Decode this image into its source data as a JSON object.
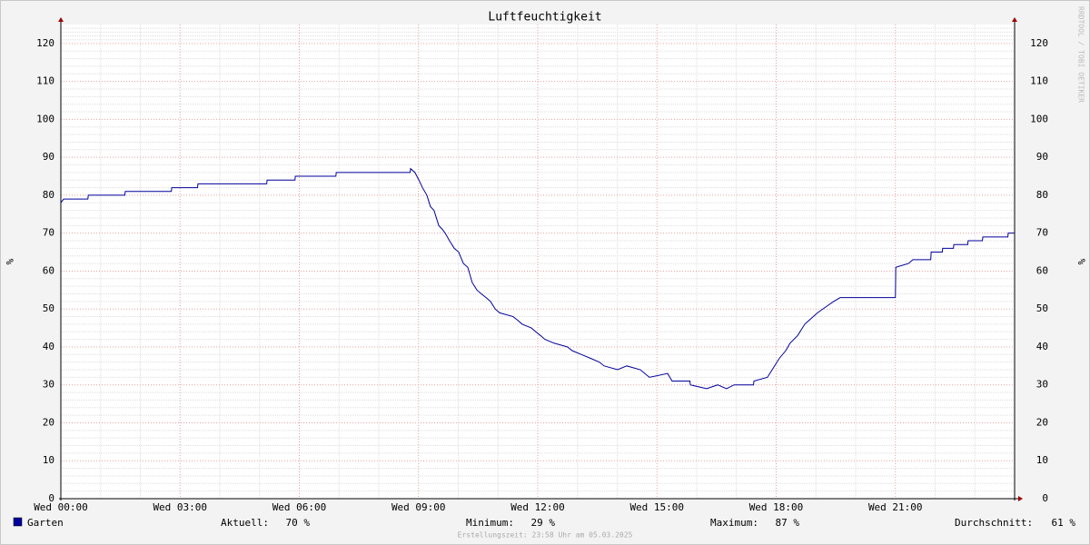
{
  "chart_data": {
    "type": "line",
    "title": "Luftfeuchtigkeit",
    "ylabel": "%",
    "watermark": "RRDTOOL / TOBI OETIKER",
    "footer": "Erstellungszeit: 23:58 Uhr am 05.03.2025",
    "xlim": [
      0,
      24
    ],
    "xticks": [
      {
        "value": 0,
        "label": "Wed 00:00"
      },
      {
        "value": 3,
        "label": "Wed 03:00"
      },
      {
        "value": 6,
        "label": "Wed 06:00"
      },
      {
        "value": 9,
        "label": "Wed 09:00"
      },
      {
        "value": 12,
        "label": "Wed 12:00"
      },
      {
        "value": 15,
        "label": "Wed 15:00"
      },
      {
        "value": 18,
        "label": "Wed 18:00"
      },
      {
        "value": 21,
        "label": "Wed 21:00"
      }
    ],
    "ylim": [
      0,
      125
    ],
    "yticks": [
      0,
      10,
      20,
      30,
      40,
      50,
      60,
      70,
      80,
      90,
      100,
      110,
      120
    ],
    "grid": true,
    "x": [
      0,
      0.07,
      0.68,
      0.69,
      1.61,
      1.62,
      2.78,
      2.79,
      3.44,
      3.45,
      5.18,
      5.19,
      5.89,
      5.9,
      6.92,
      6.93,
      8.79,
      8.8,
      8.91,
      9.01,
      9.1,
      9.21,
      9.3,
      9.39,
      9.51,
      9.6,
      9.67,
      9.78,
      9.9,
      10.01,
      10.13,
      10.24,
      10.35,
      10.47,
      10.58,
      10.7,
      10.81,
      10.93,
      11.04,
      11.38,
      11.5,
      11.61,
      11.84,
      11.95,
      12.07,
      12.18,
      12.41,
      12.75,
      12.87,
      13.1,
      13.33,
      13.55,
      13.67,
      14.01,
      14.24,
      14.58,
      14.81,
      15.27,
      15.38,
      15.83,
      15.84,
      16.25,
      16.53,
      16.75,
      16.94,
      17.43,
      17.44,
      17.78,
      17.9,
      18.08,
      18.24,
      18.35,
      18.54,
      18.72,
      19.04,
      19.31,
      19.45,
      19.61,
      21.0,
      21.01,
      21.33,
      21.44,
      21.89,
      21.9,
      22.18,
      22.19,
      22.46,
      22.47,
      22.82,
      22.83,
      23.19,
      23.2,
      23.83,
      23.84,
      24
    ],
    "series": [
      {
        "name": "Garten",
        "color": "#00009c",
        "values": [
          78,
          79,
          79,
          80,
          80,
          81,
          81,
          82,
          82,
          83,
          83,
          84,
          84,
          85,
          85,
          86,
          86,
          87,
          86,
          84,
          82,
          80,
          77,
          76,
          72,
          71,
          70,
          68,
          66,
          65,
          62,
          61,
          57,
          55,
          54,
          53,
          52,
          50,
          49,
          48,
          47,
          46,
          45,
          44,
          43,
          42,
          41,
          40,
          39,
          38,
          37,
          36,
          35,
          34,
          35,
          34,
          32,
          33,
          31,
          31,
          30,
          29,
          30,
          29,
          30,
          30,
          31,
          32,
          34,
          37,
          39,
          41,
          43,
          46,
          49,
          51,
          52,
          53,
          53,
          61,
          62,
          63,
          63,
          65,
          65,
          66,
          66,
          67,
          67,
          68,
          68,
          69,
          69,
          70,
          70
        ]
      }
    ],
    "stats": {
      "labels": [
        "Aktuell:",
        "Minimum:",
        "Maximum:",
        "Durchschnitt:"
      ],
      "values": [
        70,
        29,
        87,
        61
      ],
      "value_labels": [
        "70 %",
        "29 %",
        "87 %",
        "61 %"
      ]
    }
  }
}
